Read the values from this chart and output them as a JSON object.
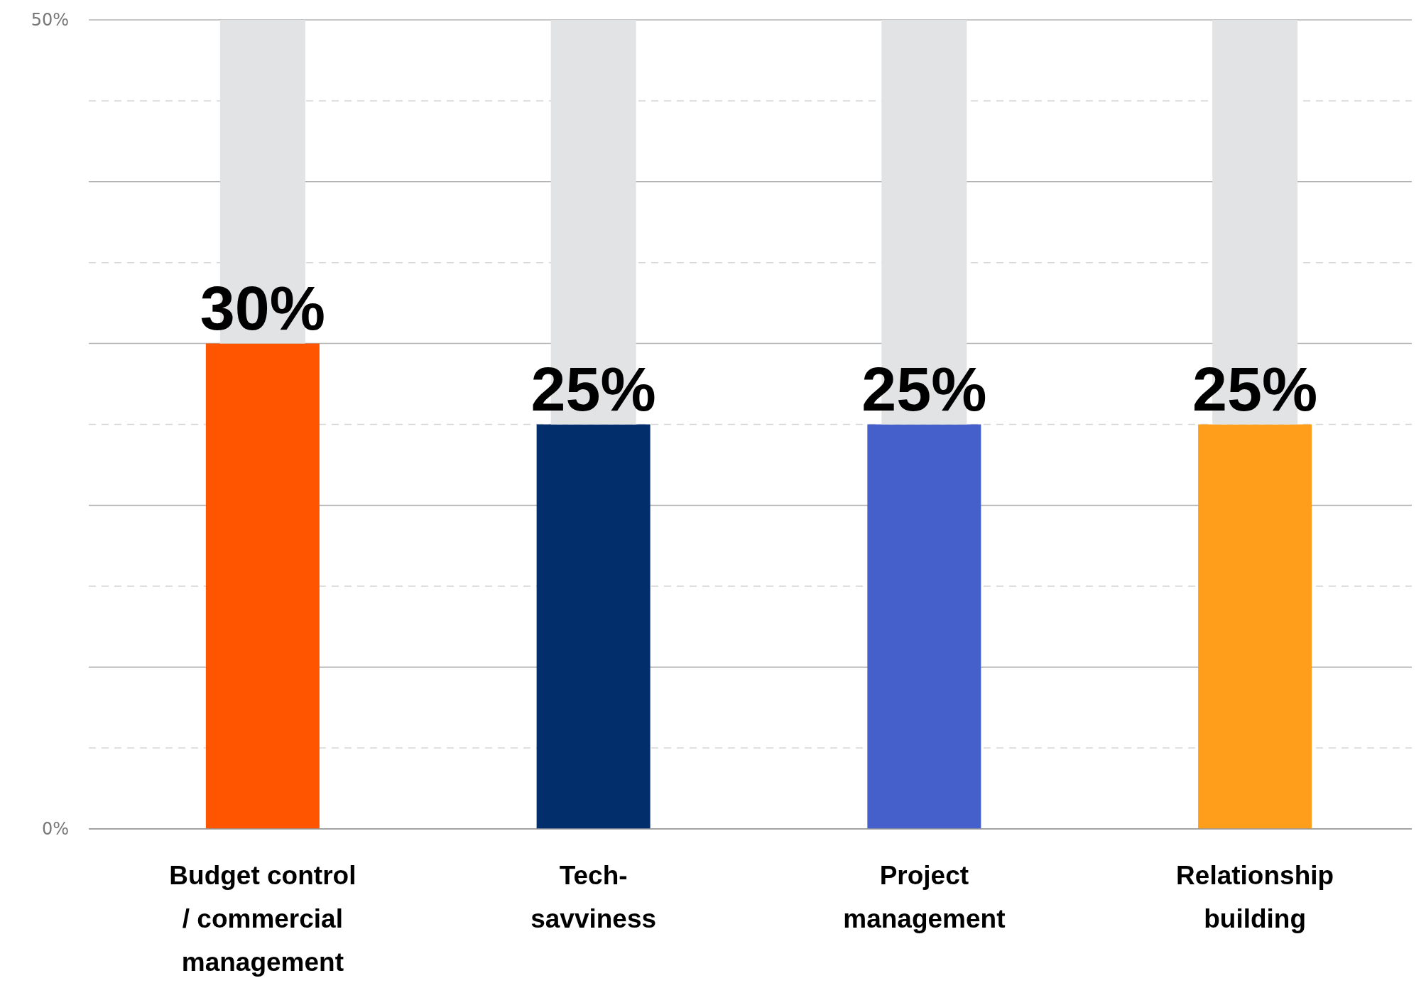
{
  "chart_data": {
    "type": "bar",
    "stacked": true,
    "categories": [
      "Budget control / commercial management",
      "Tech-savviness",
      "Project management",
      "Relationship building"
    ],
    "series": [
      {
        "colors": [
          "#ff5400",
          "#022e6b",
          "#455fcb",
          "#ff9e1b"
        ],
        "values": [
          30,
          25,
          25,
          25
        ],
        "value_labels": [
          "30%",
          "25%",
          "25%",
          "25%"
        ]
      },
      {
        "color": "#e2e3e4",
        "values": [
          20,
          25,
          25,
          25
        ]
      }
    ],
    "ylim": [
      0,
      50
    ],
    "yticks": [
      {
        "value": 0,
        "label": "0%"
      },
      {
        "value": 5,
        "label": null
      },
      {
        "value": 10,
        "label": null
      },
      {
        "value": 15,
        "label": null
      },
      {
        "value": 20,
        "label": null
      },
      {
        "value": 25,
        "label": null
      },
      {
        "value": 30,
        "label": null
      },
      {
        "value": 35,
        "label": null
      },
      {
        "value": 40,
        "label": null
      },
      {
        "value": 45,
        "label": null
      },
      {
        "value": 50,
        "label": "50%"
      }
    ],
    "grid": true
  }
}
